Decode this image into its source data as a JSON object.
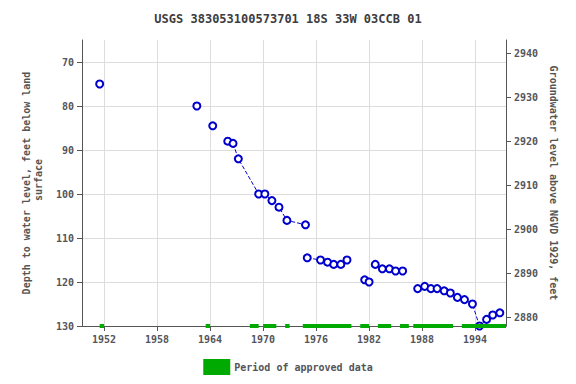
{
  "chart_data": {
    "type": "line",
    "title": "USGS 383053100573701 18S 33W 03CCB 01",
    "ylabel": "Depth to water level, feet below land\n surface",
    "y2label": "Groundwater level above NGVD 1929, feet",
    "xlim": [
      1949.5,
      1997.5
    ],
    "xticks": [
      1952,
      1958,
      1964,
      1970,
      1976,
      1982,
      1988,
      1994
    ],
    "ylim": [
      130,
      65
    ],
    "yticks": [
      70,
      80,
      90,
      100,
      110,
      120,
      130
    ],
    "y2lim": [
      2878,
      2943
    ],
    "y2ticks": [
      2880,
      2890,
      2900,
      2910,
      2920,
      2930,
      2940
    ],
    "grid": true,
    "legend": "bottom",
    "series": [
      {
        "type": "line",
        "line_style": "dashed",
        "marker": "open_circle",
        "color": "#0000cc",
        "segments": [
          {
            "x": [
              1951.5
            ],
            "values": [
              75
            ]
          },
          {
            "x": [
              1962.5
            ],
            "values": [
              80
            ]
          },
          {
            "x": [
              1964.3
            ],
            "values": [
              84.5
            ]
          },
          {
            "x": [
              1966.0,
              1966.6,
              1967.2,
              1969.5,
              1970.2,
              1971.0,
              1971.8,
              1972.7,
              1974.8
            ],
            "values": [
              88,
              88.5,
              92,
              100,
              100,
              101.5,
              103,
              106,
              107
            ]
          },
          {
            "x": [
              1975.0,
              1976.5,
              1977.3,
              1978.0,
              1978.8,
              1979.5
            ],
            "values": [
              114.5,
              115,
              115.5,
              116,
              116,
              115
            ]
          },
          {
            "x": [
              1981.5,
              1982.0
            ],
            "values": [
              119.5,
              120
            ]
          },
          {
            "x": [
              1982.7,
              1983.5,
              1984.3,
              1985.0,
              1985.8
            ],
            "values": [
              116,
              117,
              117,
              117.5,
              117.5
            ]
          },
          {
            "x": [
              1987.5,
              1988.3,
              1989.0,
              1989.7,
              1990.5,
              1991.2,
              1992.0,
              1992.8,
              1993.7,
              1994.5,
              1995.3,
              1996.0,
              1996.8
            ],
            "values": [
              121.5,
              121,
              121.5,
              121.5,
              122,
              122.5,
              123.5,
              124,
              125,
              130,
              128.5,
              127.5,
              127
            ]
          }
        ]
      },
      {
        "name": "Period of approved data",
        "type": "line",
        "line_style": "solid",
        "marker": "none",
        "color": "#00aa00",
        "segments": [
          {
            "x": [
              1951.5,
              1952.0
            ],
            "values": [
              130,
              130
            ]
          },
          {
            "x": [
              1963.5,
              1964.0
            ],
            "values": [
              130,
              130
            ]
          },
          {
            "x": [
              1968.5,
              1969.5
            ],
            "values": [
              130,
              130
            ]
          },
          {
            "x": [
              1970.0,
              1971.5
            ],
            "values": [
              130,
              130
            ]
          },
          {
            "x": [
              1972.5,
              1973.0
            ],
            "values": [
              130,
              130
            ]
          },
          {
            "x": [
              1974.5,
              1980.0
            ],
            "values": [
              130,
              130
            ]
          },
          {
            "x": [
              1981.0,
              1982.0
            ],
            "values": [
              130,
              130
            ]
          },
          {
            "x": [
              1983.0,
              1984.5
            ],
            "values": [
              130,
              130
            ]
          },
          {
            "x": [
              1985.5,
              1986.5
            ],
            "values": [
              130,
              130
            ]
          },
          {
            "x": [
              1987.0,
              1991.5
            ],
            "values": [
              130,
              130
            ]
          },
          {
            "x": [
              1992.5,
              1997.5
            ],
            "values": [
              130,
              130
            ]
          }
        ]
      }
    ]
  }
}
